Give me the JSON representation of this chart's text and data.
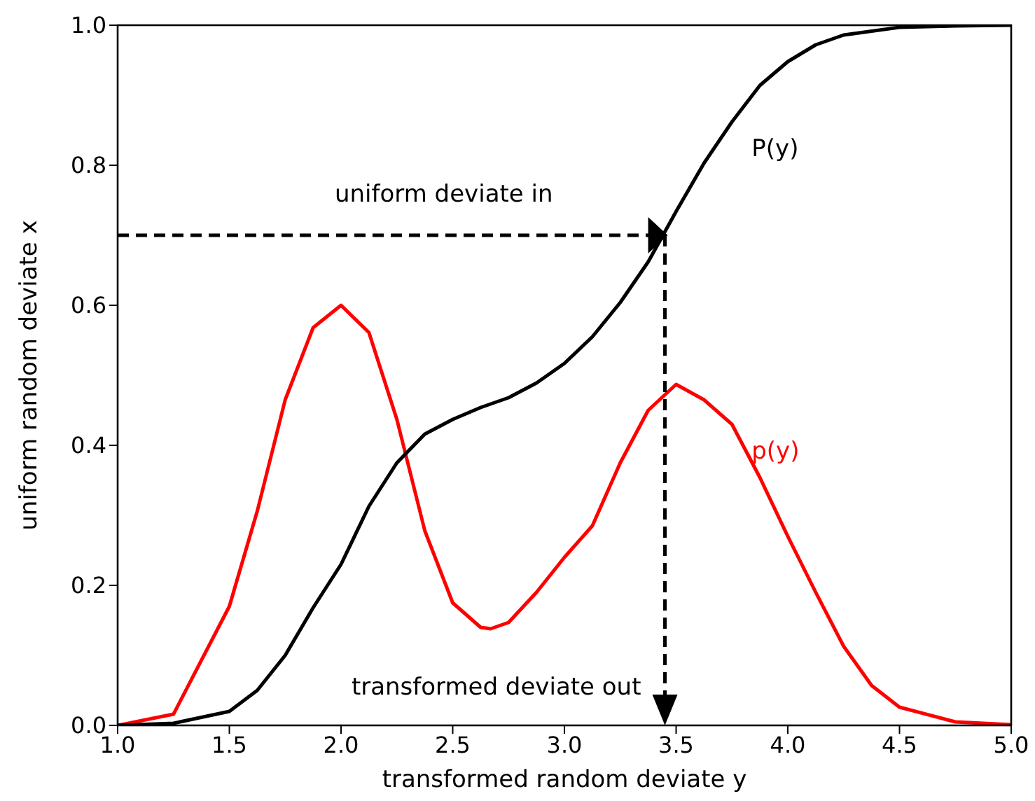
{
  "chart_data": {
    "type": "line",
    "xlabel": "transformed random deviate y",
    "ylabel": "uniform random deviate x",
    "xlim": [
      1,
      5
    ],
    "ylim": [
      0,
      1
    ],
    "xticks": [
      {
        "value": 1,
        "label": "1.0"
      },
      {
        "value": 1.5,
        "label": "1.5"
      },
      {
        "value": 2,
        "label": "2.0"
      },
      {
        "value": 2.5,
        "label": "2.5"
      },
      {
        "value": 3,
        "label": "3.0"
      },
      {
        "value": 3.5,
        "label": "3.5"
      },
      {
        "value": 4,
        "label": "4.0"
      },
      {
        "value": 4.5,
        "label": "4.5"
      },
      {
        "value": 5,
        "label": "5.0"
      }
    ],
    "yticks": [
      {
        "value": 0,
        "label": "0.0"
      },
      {
        "value": 0.2,
        "label": "0.2"
      },
      {
        "value": 0.4,
        "label": "0.4"
      },
      {
        "value": 0.6,
        "label": "0.6"
      },
      {
        "value": 0.8,
        "label": "0.8"
      },
      {
        "value": 1,
        "label": "1.0"
      }
    ],
    "grid": false,
    "legend": false,
    "marker": "none",
    "line_style": "solid",
    "series": [
      {
        "name": "p(y)",
        "color": "#ff0000",
        "x": [
          1,
          1.25,
          1.5,
          1.625,
          1.75,
          1.875,
          2,
          2.125,
          2.25,
          2.375,
          2.5,
          2.625,
          2.67,
          2.75,
          2.875,
          3,
          3.125,
          3.25,
          3.375,
          3.5,
          3.625,
          3.75,
          3.875,
          4,
          4.125,
          4.25,
          4.375,
          4.5,
          4.75,
          5
        ],
        "values": [
          0,
          0.016,
          0.17,
          0.306,
          0.465,
          0.568,
          0.6,
          0.561,
          0.437,
          0.278,
          0.175,
          0.14,
          0.138,
          0.147,
          0.19,
          0.24,
          0.285,
          0.375,
          0.45,
          0.487,
          0.465,
          0.43,
          0.354,
          0.27,
          0.19,
          0.113,
          0.057,
          0.026,
          0.005,
          0.001
        ]
      },
      {
        "name": "P(y)",
        "color": "#000000",
        "x": [
          1,
          1.25,
          1.5,
          1.625,
          1.75,
          1.875,
          2,
          2.125,
          2.25,
          2.375,
          2.5,
          2.625,
          2.75,
          2.875,
          3,
          3.125,
          3.25,
          3.375,
          3.5,
          3.625,
          3.75,
          3.875,
          4,
          4.125,
          4.25,
          4.5,
          4.75,
          5
        ],
        "values": [
          0,
          0.003,
          0.02,
          0.05,
          0.1,
          0.168,
          0.23,
          0.313,
          0.375,
          0.416,
          0.437,
          0.454,
          0.468,
          0.489,
          0.517,
          0.555,
          0.604,
          0.662,
          0.734,
          0.803,
          0.862,
          0.914,
          0.948,
          0.972,
          0.986,
          0.997,
          0.999,
          1
        ]
      }
    ],
    "ref_lines": [
      {
        "axis": "y",
        "value": 0.7,
        "color": "#000000",
        "line_style": "dashed"
      },
      {
        "axis": "x",
        "value": 3.45,
        "color": "#000000",
        "line_style": "dashed"
      }
    ],
    "annotations": [
      "uniform deviate in",
      "transformed deviate out"
    ]
  }
}
